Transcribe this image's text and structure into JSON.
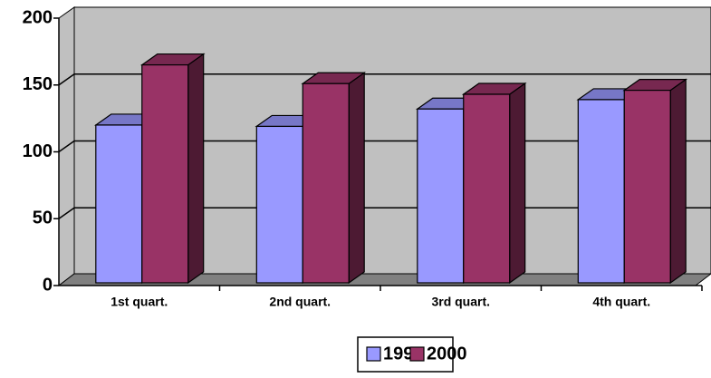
{
  "chart_data": {
    "type": "bar3d",
    "categories": [
      "1st quart.",
      "2nd quart.",
      "3rd quart.",
      "4th quart."
    ],
    "series": [
      {
        "name": "1999",
        "color": "#9999ff",
        "values": [
          118,
          117,
          130,
          137
        ]
      },
      {
        "name": "2000",
        "color": "#993366",
        "values": [
          163,
          149,
          141,
          144
        ]
      }
    ],
    "ylim": [
      0,
      200
    ],
    "yticks": [
      0,
      50,
      100,
      150,
      200
    ],
    "grid": true,
    "legend": "bottom"
  }
}
